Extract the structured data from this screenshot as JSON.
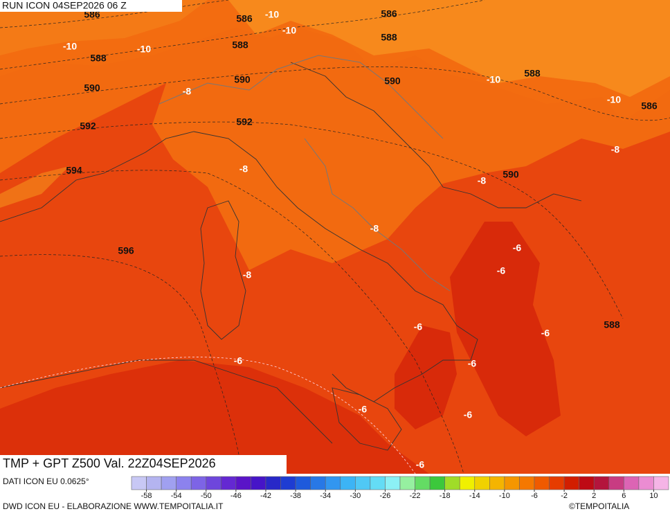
{
  "header": {
    "run": "RUN ICON 04SEP2026 06 Z"
  },
  "footer": {
    "title": "TMP + GPT Z500 Val. 22Z04SEP2026",
    "source": "DATI ICON EU 0.0625°",
    "credit": "DWD ICON EU - ELABORAZIONE WWW.TEMPOITALIA.IT",
    "copyright": "©TEMPOITALIA"
  },
  "map": {
    "geopotential_labels": [
      "586",
      "586",
      "586",
      "588",
      "588",
      "588",
      "590",
      "590",
      "588",
      "590",
      "586",
      "592",
      "592",
      "594",
      "590",
      "596",
      "588"
    ],
    "temperature_labels": [
      "-10",
      "-10",
      "-10",
      "-10",
      "-10",
      "-8",
      "-10",
      "-8",
      "-8",
      "-8",
      "-8",
      "-6",
      "-6",
      "-8",
      "-6",
      "-6",
      "-6",
      "-6",
      "-6",
      "-6",
      "-6"
    ]
  },
  "colorbar": {
    "range": [
      -60,
      12
    ],
    "colors": [
      "#c8c8f5",
      "#b4b4f0",
      "#a0a0f0",
      "#8c82ee",
      "#7d64e6",
      "#6e46dc",
      "#6428d2",
      "#5a14c8",
      "#4614c8",
      "#2828c8",
      "#1e3cd2",
      "#1e5adc",
      "#2878e6",
      "#3296f0",
      "#3cb4f5",
      "#50c8f5",
      "#64dcf5",
      "#8cf0f5",
      "#96f0a0",
      "#64dc64",
      "#3cc83c",
      "#a0dc28",
      "#f0f000",
      "#f0d200",
      "#f5b400",
      "#f59600",
      "#f57800",
      "#f05a00",
      "#e63c00",
      "#d21e00",
      "#be0a14",
      "#b4143c",
      "#c83c82",
      "#dc64b4",
      "#eb8cd2",
      "#f5b4e6"
    ],
    "ticks": [
      -58,
      -54,
      -50,
      -46,
      -42,
      -38,
      -34,
      -30,
      -26,
      -22,
      -18,
      -14,
      -10,
      -6,
      -2,
      2,
      6,
      10
    ]
  }
}
